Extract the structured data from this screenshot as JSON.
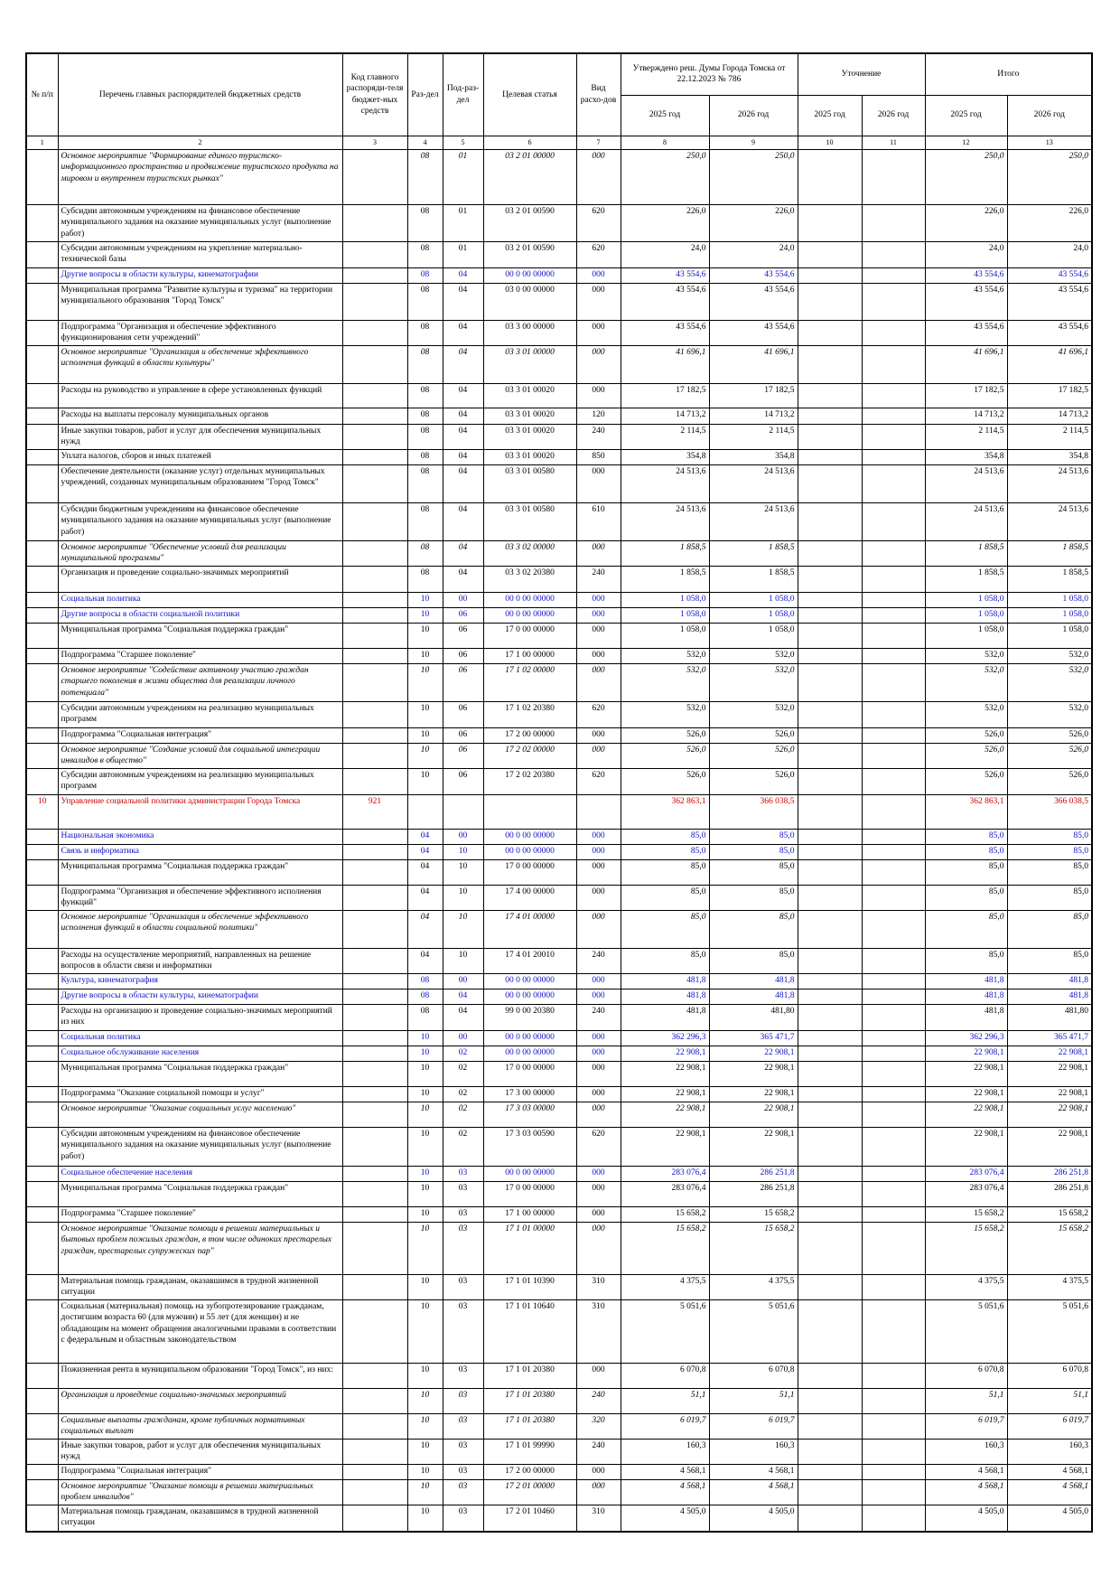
{
  "header": {
    "columns": [
      "№ п/п",
      "Перечень главных распорядителей бюджетных средств",
      "Код главного распоряди-теля бюджет-ных средств",
      "Раз-дел",
      "Под-раз-дел",
      "Целевая статья",
      "Вид расхо-дов"
    ],
    "groups": [
      "Утверждено реш. Думы Города Томска от 22.12.2023 № 786",
      "Уточнение",
      "Итого"
    ],
    "years": [
      "2025 год",
      "2026 год",
      "2025 год",
      "2026 год",
      "2025 год",
      "2026 год"
    ],
    "numbers": [
      "1",
      "2",
      "3",
      "4",
      "5",
      "6",
      "7",
      "8",
      "9",
      "10",
      "11",
      "12",
      "13"
    ]
  },
  "rows": [
    {
      "style": "ib",
      "cells": [
        null,
        "Основное мероприятие \"Формирование единого туристско-информационного пространства и продвижение туристского продукта на мировом и внутреннем туристских рынках\"",
        null,
        "08",
        "01",
        "03 2 01 00000",
        "000",
        "250,0",
        "250,0",
        null,
        null,
        "250,0",
        "250,0"
      ]
    },
    {
      "style": "normal",
      "cells": [
        null,
        "Субсидии автономным учреждениям на финансовое обеспечение муниципального задания на оказание муниципальных услуг (выполнение работ)",
        null,
        "08",
        "01",
        "03 2 01 00590",
        "620",
        "226,0",
        "226,0",
        null,
        null,
        "226,0",
        "226,0"
      ]
    },
    {
      "style": "normal",
      "cells": [
        null,
        "Субсидии автономным учреждениям на укрепление материально-технической базы",
        null,
        "08",
        "01",
        "03 2 01 00590",
        "620",
        "24,0",
        "24,0",
        null,
        null,
        "24,0",
        "24,0"
      ]
    },
    {
      "style": "blue",
      "cells": [
        null,
        "Другие вопросы в области культуры, кинематографии",
        null,
        "08",
        "04",
        "00 0 00 00000",
        "000",
        "43 554,6",
        "43 554,6",
        null,
        null,
        "43 554,6",
        "43 554,6"
      ]
    },
    {
      "style": "bold",
      "cells": [
        null,
        "Муниципальная программа \"Развитие культуры и туризма\" на территории муниципального образования \"Город Томск\"",
        null,
        "08",
        "04",
        "03 0 00 00000",
        "000",
        "43 554,6",
        "43 554,6",
        null,
        null,
        "43 554,6",
        "43 554,6"
      ]
    },
    {
      "style": "bold",
      "cells": [
        null,
        "Подпрограмма \"Организация и обеспечение эффективного функционирования сети учреждений\"",
        null,
        "08",
        "04",
        "03 3 00 00000",
        "000",
        "43 554,6",
        "43 554,6",
        null,
        null,
        "43 554,6",
        "43 554,6"
      ]
    },
    {
      "style": "ib",
      "cells": [
        null,
        "Основное мероприятие \"Организация и обеспечение эффективного исполнения функций в области культуры\"",
        null,
        "08",
        "04",
        "03 3 01 00000",
        "000",
        "41 696,1",
        "41 696,1",
        null,
        null,
        "41 696,1",
        "41 696,1"
      ]
    },
    {
      "style": "normal",
      "cells": [
        null,
        "Расходы на руководство и управление в сфере установленных функций",
        null,
        "08",
        "04",
        "03 3 01 00020",
        "000",
        "17 182,5",
        "17 182,5",
        null,
        null,
        "17 182,5",
        "17 182,5"
      ]
    },
    {
      "style": "normal",
      "cells": [
        null,
        "Расходы на выплаты персоналу муниципальных органов",
        null,
        "08",
        "04",
        "03 3 01 00020",
        "120",
        "14 713,2",
        "14 713,2",
        null,
        null,
        "14 713,2",
        "14 713,2"
      ]
    },
    {
      "style": "normal",
      "cells": [
        null,
        "Иные закупки товаров, работ и услуг для обеспечения муниципальных нужд",
        null,
        "08",
        "04",
        "03 3 01 00020",
        "240",
        "2 114,5",
        "2 114,5",
        null,
        null,
        "2 114,5",
        "2 114,5"
      ]
    },
    {
      "style": "normal",
      "cells": [
        null,
        "Уплата налогов, сборов и иных платежей",
        null,
        "08",
        "04",
        "03 3 01 00020",
        "850",
        "354,8",
        "354,8",
        null,
        null,
        "354,8",
        "354,8"
      ]
    },
    {
      "style": "normal",
      "cells": [
        null,
        "Обеспечение деятельности (оказание услуг) отдельных муниципальных учреждений, созданных муниципальным образованием \"Город Томск\"",
        null,
        "08",
        "04",
        "03 3 01 00580",
        "000",
        "24 513,6",
        "24 513,6",
        null,
        null,
        "24 513,6",
        "24 513,6"
      ]
    },
    {
      "style": "normal",
      "cells": [
        null,
        "Субсидии бюджетным учреждениям на финансовое обеспечение муниципального задания на оказание муниципальных услуг (выполнение работ)",
        null,
        "08",
        "04",
        "03 3 01 00580",
        "610",
        "24 513,6",
        "24 513,6",
        null,
        null,
        "24 513,6",
        "24 513,6"
      ]
    },
    {
      "style": "ib",
      "cells": [
        null,
        "Основное мероприятие \"Обеспечение условий для реализации муниципальной программы\"",
        null,
        "08",
        "04",
        "03 3 02 00000",
        "000",
        "1 858,5",
        "1 858,5",
        null,
        null,
        "1 858,5",
        "1 858,5"
      ]
    },
    {
      "style": "normal",
      "cells": [
        null,
        "Организация и проведение социально-значимых мероприятий",
        null,
        "08",
        "04",
        "03 3 02 20380",
        "240",
        "1 858,5",
        "1 858,5",
        null,
        null,
        "1 858,5",
        "1 858,5"
      ]
    },
    {
      "style": "blue big",
      "cells": [
        null,
        "Социальная политика",
        null,
        "10",
        "00",
        "00 0 00 00000",
        "000",
        "1 058,0",
        "1 058,0",
        null,
        null,
        "1 058,0",
        "1 058,0"
      ]
    },
    {
      "style": "blue",
      "cells": [
        null,
        "Другие вопросы в области социальной политики",
        null,
        "10",
        "06",
        "00 0 00 00000",
        "000",
        "1 058,0",
        "1 058,0",
        null,
        null,
        "1 058,0",
        "1 058,0"
      ]
    },
    {
      "style": "bold",
      "cells": [
        null,
        "Муниципальная программа \"Социальная поддержка граждан\"",
        null,
        "10",
        "06",
        "17 0 00 00000",
        "000",
        "1 058,0",
        "1 058,0",
        null,
        null,
        "1 058,0",
        "1 058,0"
      ]
    },
    {
      "style": "bold",
      "cells": [
        null,
        "Подпрограмма \"Старшее поколение\"",
        null,
        "10",
        "06",
        "17 1 00 00000",
        "000",
        "532,0",
        "532,0",
        null,
        null,
        "532,0",
        "532,0"
      ]
    },
    {
      "style": "ib",
      "cells": [
        null,
        "Основное мероприятие \"Содействие активному участию граждан старшего поколения в жизни общества для реализации личного потенциала\"",
        null,
        "10",
        "06",
        "17 1 02 00000",
        "000",
        "532,0",
        "532,0",
        null,
        null,
        "532,0",
        "532,0"
      ]
    },
    {
      "style": "normal",
      "cells": [
        null,
        "Субсидии автономным учреждениям на реализацию муниципальных программ",
        null,
        "10",
        "06",
        "17 1 02 20380",
        "620",
        "532,0",
        "532,0",
        null,
        null,
        "532,0",
        "532,0"
      ]
    },
    {
      "style": "bold",
      "cells": [
        null,
        "Подпрограмма \"Социальная интеграция\"",
        null,
        "10",
        "06",
        "17 2 00 00000",
        "000",
        "526,0",
        "526,0",
        null,
        null,
        "526,0",
        "526,0"
      ]
    },
    {
      "style": "ib",
      "cells": [
        null,
        "Основное мероприятие \"Создание условий для социальной интеграции инвалидов в общество\"",
        null,
        "10",
        "06",
        "17 2 02 00000",
        "000",
        "526,0",
        "526,0",
        null,
        null,
        "526,0",
        "526,0"
      ]
    },
    {
      "style": "normal",
      "cells": [
        null,
        "Субсидии автономным учреждениям на реализацию муниципальных программ",
        null,
        "10",
        "06",
        "17 2 02 20380",
        "620",
        "526,0",
        "526,0",
        null,
        null,
        "526,0",
        "526,0"
      ]
    },
    {
      "style": "red",
      "cells": [
        "10",
        "Управление социальной политики администрации Города Томска",
        "921",
        null,
        null,
        null,
        null,
        "362 863,1",
        "366 038,5",
        null,
        null,
        "362 863,1",
        "366 038,5"
      ]
    },
    {
      "style": "blue big",
      "cells": [
        null,
        "Национальная экономика",
        null,
        "04",
        "00",
        "00 0 00 00000",
        "000",
        "85,0",
        "85,0",
        null,
        null,
        "85,0",
        "85,0"
      ]
    },
    {
      "style": "blue",
      "cells": [
        null,
        "Связь и информатика",
        null,
        "04",
        "10",
        "00 0 00 00000",
        "000",
        "85,0",
        "85,0",
        null,
        null,
        "85,0",
        "85,0"
      ]
    },
    {
      "style": "bold",
      "cells": [
        null,
        "Муниципальная программа \"Социальная поддержка граждан\"",
        null,
        "04",
        "10",
        "17 0 00 00000",
        "000",
        "85,0",
        "85,0",
        null,
        null,
        "85,0",
        "85,0"
      ]
    },
    {
      "style": "bold",
      "cells": [
        null,
        "Подпрограмма \"Организация и обеспечение эффективного исполнения функций\"",
        null,
        "04",
        "10",
        "17 4 00 00000",
        "000",
        "85,0",
        "85,0",
        null,
        null,
        "85,0",
        "85,0"
      ]
    },
    {
      "style": "ib",
      "cells": [
        null,
        "Основное мероприятие \"Организация и обеспечение эффективного исполнения функций в области социальной политики\"",
        null,
        "04",
        "10",
        "17 4 01 00000",
        "000",
        "85,0",
        "85,0",
        null,
        null,
        "85,0",
        "85,0"
      ]
    },
    {
      "style": "normal",
      "cells": [
        null,
        "Расходы на осуществление мероприятий, направленных на решение вопросов в области связи и информатики",
        null,
        "04",
        "10",
        "17 4 01 20010",
        "240",
        "85,0",
        "85,0",
        null,
        null,
        "85,0",
        "85,0"
      ]
    },
    {
      "style": "blue big",
      "cells": [
        null,
        "Культура, кинематография",
        null,
        "08",
        "00",
        "00 0 00 00000",
        "000",
        "481,8",
        "481,8",
        null,
        null,
        "481,8",
        "481,8"
      ]
    },
    {
      "style": "blue",
      "cells": [
        null,
        "Другие вопросы в области культуры, кинематографии",
        null,
        "08",
        "04",
        "00 0 00 00000",
        "000",
        "481,8",
        "481,8",
        null,
        null,
        "481,8",
        "481,8"
      ]
    },
    {
      "style": "normal",
      "cells": [
        null,
        "Расходы на организацию и проведение социально-значимых мероприятий из них",
        null,
        "08",
        "04",
        "99 0 00 20380",
        "240",
        "481,8",
        "481,80",
        null,
        null,
        "481,8",
        "481,80"
      ]
    },
    {
      "style": "blue big",
      "cells": [
        null,
        "Социальная политика",
        null,
        "10",
        "00",
        "00 0 00 00000",
        "000",
        "362 296,3",
        "365 471,7",
        null,
        null,
        "362 296,3",
        "365 471,7"
      ]
    },
    {
      "style": "blue",
      "cells": [
        null,
        "Социальное обслуживание населения",
        null,
        "10",
        "02",
        "00 0 00 00000",
        "000",
        "22 908,1",
        "22 908,1",
        null,
        null,
        "22 908,1",
        "22 908,1"
      ]
    },
    {
      "style": "bold",
      "cells": [
        null,
        "Муниципальная программа \"Социальная поддержка граждан\"",
        null,
        "10",
        "02",
        "17 0 00 00000",
        "000",
        "22 908,1",
        "22 908,1",
        null,
        null,
        "22 908,1",
        "22 908,1"
      ]
    },
    {
      "style": "bold",
      "cells": [
        null,
        "Подпрограмма \"Оказание социальной помощи и услуг\"",
        null,
        "10",
        "02",
        "17 3 00 00000",
        "000",
        "22 908,1",
        "22 908,1",
        null,
        null,
        "22 908,1",
        "22 908,1"
      ]
    },
    {
      "style": "ib",
      "cells": [
        null,
        "Основное мероприятие \"Оказание социальных услуг населению\"",
        null,
        "10",
        "02",
        "17 3 03 00000",
        "000",
        "22 908,1",
        "22 908,1",
        null,
        null,
        "22 908,1",
        "22 908,1"
      ]
    },
    {
      "style": "normal",
      "cells": [
        null,
        "Субсидии автономным учреждениям на финансовое обеспечение муниципального задания на оказание муниципальных услуг (выполнение работ)",
        null,
        "10",
        "02",
        "17 3 03 00590",
        "620",
        "22 908,1",
        "22 908,1",
        null,
        null,
        "22 908,1",
        "22 908,1"
      ]
    },
    {
      "style": "blue",
      "cells": [
        null,
        "Социальное обеспечение населения",
        null,
        "10",
        "03",
        "00 0 00 00000",
        "000",
        "283 076,4",
        "286 251,8",
        null,
        null,
        "283 076,4",
        "286 251,8"
      ]
    },
    {
      "style": "bold",
      "cells": [
        null,
        "Муниципальная программа \"Социальная поддержка граждан\"",
        null,
        "10",
        "03",
        "17 0 00 00000",
        "000",
        "283 076,4",
        "286 251,8",
        null,
        null,
        "283 076,4",
        "286 251,8"
      ]
    },
    {
      "style": "bold",
      "cells": [
        null,
        "Подпрограмма \"Старшее поколение\"",
        null,
        "10",
        "03",
        "17 1 00 00000",
        "000",
        "15 658,2",
        "15 658,2",
        null,
        null,
        "15 658,2",
        "15 658,2"
      ]
    },
    {
      "style": "ib",
      "cells": [
        null,
        "Основное мероприятие \"Оказание помощи в решении материальных и бытовых проблем пожилых граждан, в том числе одиноких престарелых граждан, престарелых супружеских пар\"",
        null,
        "10",
        "03",
        "17 1 01 00000",
        "000",
        "15 658,2",
        "15 658,2",
        null,
        null,
        "15 658,2",
        "15 658,2"
      ]
    },
    {
      "style": "normal",
      "cells": [
        null,
        "Материальная помощь гражданам, оказавшимся в трудной жизненной ситуации",
        null,
        "10",
        "03",
        "17 1 01 10390",
        "310",
        "4 375,5",
        "4 375,5",
        null,
        null,
        "4 375,5",
        "4 375,5"
      ]
    },
    {
      "style": "normal",
      "cells": [
        null,
        "Социальная (материальная) помощь на зубопротезирование гражданам, достигшим возраста 60 (для мужчин) и 55 лет (для женщин) и не обладающим на момент обращения аналогичными правами в соответствии с федеральным и областным законодательством",
        null,
        "10",
        "03",
        "17 1 01 10640",
        "310",
        "5 051,6",
        "5 051,6",
        null,
        null,
        "5 051,6",
        "5 051,6"
      ]
    },
    {
      "style": "normal",
      "cells": [
        null,
        "Пожизненная рента в муниципальном образовании \"Город Томск\", из них:",
        null,
        "10",
        "03",
        "17 1 01 20380",
        "000",
        "6 070,8",
        "6 070,8",
        null,
        null,
        "6 070,8",
        "6 070,8"
      ]
    },
    {
      "style": "it",
      "cells": [
        null,
        "Организация и проведение социально-значимых мероприятий",
        null,
        "10",
        "03",
        "17 1 01 20380",
        "240",
        "51,1",
        "51,1",
        null,
        null,
        "51,1",
        "51,1"
      ]
    },
    {
      "style": "it",
      "cells": [
        null,
        "Социальные выплаты гражданам, кроме публичных нормативных социальных выплат",
        null,
        "10",
        "03",
        "17 1 01 20380",
        "320",
        "6 019,7",
        "6 019,7",
        null,
        null,
        "6 019,7",
        "6 019,7"
      ]
    },
    {
      "style": "normal",
      "cells": [
        null,
        "Иные закупки товаров, работ и услуг для обеспечения муниципальных нужд",
        null,
        "10",
        "03",
        "17 1 01 99990",
        "240",
        "160,3",
        "160,3",
        null,
        null,
        "160,3",
        "160,3"
      ]
    },
    {
      "style": "bold",
      "cells": [
        null,
        "Подпрограмма \"Социальная интеграция\"",
        null,
        "10",
        "03",
        "17 2 00 00000",
        "000",
        "4 568,1",
        "4 568,1",
        null,
        null,
        "4 568,1",
        "4 568,1"
      ]
    },
    {
      "style": "ib",
      "cells": [
        null,
        "Основное мероприятие \"Оказание помощи в решении материальных проблем инвалидов\"",
        null,
        "10",
        "03",
        "17 2 01 00000",
        "000",
        "4 568,1",
        "4 568,1",
        null,
        null,
        "4 568,1",
        "4 568,1"
      ]
    },
    {
      "style": "normal",
      "cells": [
        null,
        "Материальная помощь гражданам, оказавшимся в трудной жизненной ситуации",
        null,
        "10",
        "03",
        "17 2 01 10460",
        "310",
        "4 505,0",
        "4 505,0",
        null,
        null,
        "4 505,0",
        "4 505,0"
      ]
    }
  ]
}
